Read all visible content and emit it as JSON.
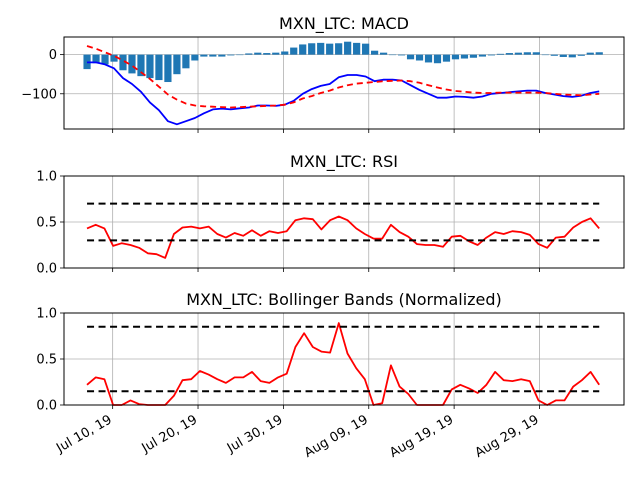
{
  "chart_data": [
    {
      "type": "line",
      "title": "MXN_LTC: MACD",
      "ylim": [
        -190,
        45
      ],
      "yticks": [
        0,
        -100
      ],
      "ytick_labels": [
        "0",
        "−100"
      ],
      "grid": true,
      "series": [
        {
          "kind": "bar",
          "color": "#1f77b4",
          "values": [
            -37,
            -22,
            -25,
            -18,
            -40,
            -48,
            -55,
            -60,
            -65,
            -70,
            -50,
            -35,
            -15,
            -5,
            -5,
            -5,
            -2,
            0,
            3,
            5,
            4,
            5,
            8,
            18,
            26,
            29,
            30,
            28,
            29,
            33,
            30,
            28,
            10,
            5,
            0,
            -2,
            -12,
            -15,
            -20,
            -22,
            -18,
            -12,
            -10,
            -8,
            -5,
            -2,
            2,
            4,
            5,
            6,
            6,
            0,
            -3,
            -6,
            -7,
            -3,
            5,
            6
          ]
        },
        {
          "kind": "line",
          "color": "#0000ff",
          "style": "solid",
          "values": [
            -20,
            -20,
            -25,
            -35,
            -60,
            -75,
            -95,
            -122,
            -142,
            -170,
            -178,
            -170,
            -162,
            -150,
            -140,
            -138,
            -140,
            -137,
            -135,
            -130,
            -130,
            -131,
            -128,
            -118,
            -100,
            -88,
            -80,
            -75,
            -58,
            -52,
            -52,
            -56,
            -68,
            -64,
            -64,
            -66,
            -78,
            -90,
            -100,
            -110,
            -110,
            -107,
            -108,
            -110,
            -107,
            -100,
            -98,
            -96,
            -94,
            -92,
            -92,
            -98,
            -102,
            -106,
            -108,
            -105,
            -98,
            -94
          ]
        },
        {
          "kind": "line",
          "color": "#ff0000",
          "style": "dashed",
          "values": [
            22,
            15,
            6,
            -3,
            -15,
            -28,
            -45,
            -62,
            -82,
            -102,
            -115,
            -125,
            -130,
            -132,
            -133,
            -134,
            -135,
            -134,
            -133,
            -132,
            -131,
            -130,
            -128,
            -122,
            -112,
            -106,
            -98,
            -92,
            -84,
            -78,
            -74,
            -72,
            -70,
            -68,
            -67,
            -66,
            -68,
            -72,
            -78,
            -84,
            -89,
            -93,
            -95,
            -97,
            -98,
            -98,
            -97,
            -97,
            -97,
            -97,
            -97,
            -98,
            -100,
            -102,
            -103,
            -104,
            -102,
            -100
          ]
        }
      ]
    },
    {
      "type": "line",
      "title": "MXN_LTC: RSI",
      "ylim": [
        0,
        1
      ],
      "yticks": [
        0.0,
        0.5,
        1.0
      ],
      "ytick_labels": [
        "0.0",
        "0.5",
        "1.0"
      ],
      "grid": true,
      "series": [
        {
          "kind": "line",
          "color": "#ff0000",
          "style": "solid",
          "values": [
            0.43,
            0.47,
            0.43,
            0.24,
            0.27,
            0.25,
            0.22,
            0.16,
            0.15,
            0.11,
            0.37,
            0.44,
            0.45,
            0.43,
            0.45,
            0.37,
            0.33,
            0.38,
            0.35,
            0.41,
            0.35,
            0.4,
            0.38,
            0.4,
            0.52,
            0.54,
            0.53,
            0.42,
            0.52,
            0.56,
            0.52,
            0.43,
            0.37,
            0.32,
            0.32,
            0.47,
            0.39,
            0.34,
            0.26,
            0.25,
            0.25,
            0.23,
            0.34,
            0.35,
            0.29,
            0.25,
            0.33,
            0.39,
            0.37,
            0.4,
            0.39,
            0.36,
            0.26,
            0.22,
            0.33,
            0.34,
            0.44,
            0.5,
            0.54,
            0.43
          ]
        },
        {
          "kind": "hline",
          "color": "#000000",
          "style": "dashed",
          "value": 0.7
        },
        {
          "kind": "hline",
          "color": "#000000",
          "style": "dashed",
          "value": 0.3
        }
      ]
    },
    {
      "type": "line",
      "title": "MXN_LTC: Bollinger Bands (Normalized)",
      "ylim": [
        0,
        1
      ],
      "yticks": [
        0.0,
        0.5,
        1.0
      ],
      "ytick_labels": [
        "0.0",
        "0.5",
        "1.0"
      ],
      "grid": true,
      "series": [
        {
          "kind": "line",
          "color": "#ff0000",
          "style": "solid",
          "values": [
            0.22,
            0.3,
            0.28,
            0.0,
            0.0,
            0.05,
            0.01,
            0.0,
            0.0,
            0.0,
            0.1,
            0.27,
            0.28,
            0.37,
            0.33,
            0.28,
            0.24,
            0.3,
            0.3,
            0.36,
            0.26,
            0.24,
            0.3,
            0.34,
            0.63,
            0.78,
            0.63,
            0.58,
            0.57,
            0.89,
            0.56,
            0.4,
            0.28,
            0.0,
            0.02,
            0.43,
            0.2,
            0.12,
            0.0,
            0.0,
            0.0,
            0.0,
            0.17,
            0.22,
            0.18,
            0.13,
            0.22,
            0.36,
            0.27,
            0.26,
            0.28,
            0.26,
            0.05,
            0.0,
            0.05,
            0.05,
            0.2,
            0.27,
            0.36,
            0.22
          ]
        },
        {
          "kind": "hline",
          "color": "#000000",
          "style": "dashed",
          "value": 0.85
        },
        {
          "kind": "hline",
          "color": "#000000",
          "style": "dashed",
          "value": 0.15
        }
      ]
    }
  ],
  "x_dates": {
    "start": "2019-07-07",
    "end": "2019-09-05",
    "tick_dates": [
      "2019-07-10",
      "2019-07-20",
      "2019-07-30",
      "2019-08-09",
      "2019-08-19",
      "2019-08-29"
    ],
    "tick_labels": [
      "Jul 10, 19",
      "Jul 20, 19",
      "Jul 30, 19",
      "Aug 09, 19",
      "Aug 19, 19",
      "Aug 29, 19"
    ]
  }
}
